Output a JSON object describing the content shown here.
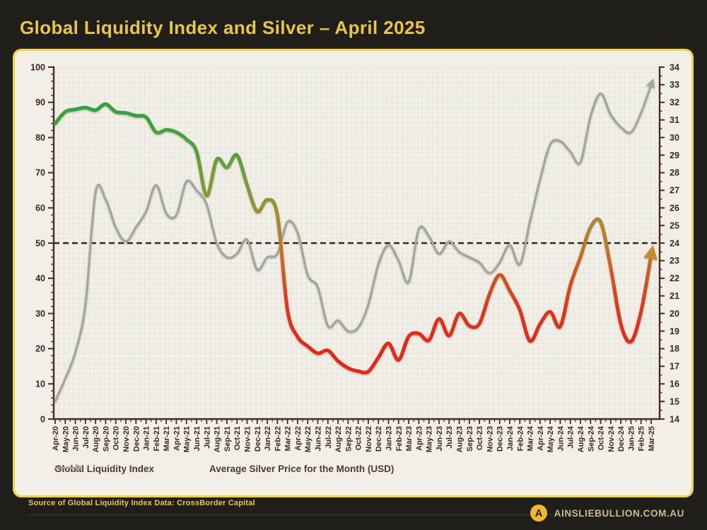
{
  "page": {
    "background": "#201e1b",
    "title": "Global Liquidity Index and Silver – April 2025",
    "title_color": "#eac73e"
  },
  "panel": {
    "background": "#f1efe7",
    "border_color": "#f2d43c"
  },
  "legend": {
    "items": [
      {
        "label": "Global Liquidity Index",
        "color": "#c1802c",
        "icon": "arrow-right"
      },
      {
        "label": "Average Silver Price for the Month (USD)",
        "color": "#a6a49f",
        "icon": "arrow-right"
      }
    ]
  },
  "footer": {
    "source_text": "Source of Global Liquidity Index Data: CrossBorder Capital",
    "source_color": "#eac73e",
    "brand_text": "AINSLIEBULLION.COM.AU",
    "brand_color": "#c8bd91",
    "logo_letter": "A",
    "logo_color": "#f0b92c"
  },
  "chart_data": {
    "type": "line",
    "x_categories": [
      "Apr-20",
      "May-20",
      "Jun-20",
      "Jul-20",
      "Aug-20",
      "Sep-20",
      "Oct-20",
      "Nov-20",
      "Dec-20",
      "Jan-21",
      "Feb-21",
      "Mar-21",
      "Apr-21",
      "May-21",
      "Jun-21",
      "Jul-21",
      "Aug-21",
      "Sep-21",
      "Oct-21",
      "Nov-21",
      "Dec-21",
      "Jan-22",
      "Feb-22",
      "Mar-22",
      "Apr-22",
      "May-22",
      "Jun-22",
      "Jul-22",
      "Aug-22",
      "Sep-22",
      "Oct-22",
      "Nov-22",
      "Dec-22",
      "Jan-23",
      "Feb-23",
      "Mar-23",
      "Apr-23",
      "May-23",
      "Jun-23",
      "Jul-23",
      "Aug-23",
      "Sep-23",
      "Oct-23",
      "Nov-23",
      "Dec-23",
      "Jan-24",
      "Feb-24",
      "Mar-24",
      "Apr-24",
      "May-24",
      "Jun-24",
      "Jul-24",
      "Aug-24",
      "Sep-24",
      "Oct-24",
      "Nov-24",
      "Dec-24",
      "Jan-25",
      "Feb-25",
      "Mar-25"
    ],
    "series": [
      {
        "name": "Global Liquidity Index",
        "axis": "left",
        "color_mode": "value-gradient",
        "line_width": 5,
        "values": [
          84,
          87.3,
          88,
          88.5,
          87.8,
          89.5,
          87.3,
          87,
          86.2,
          85.8,
          81.5,
          82.2,
          81.5,
          79.5,
          76,
          63.5,
          73.8,
          71.5,
          75,
          66.5,
          59,
          62.3,
          58,
          31,
          23.4,
          20.7,
          18.7,
          19.5,
          16.5,
          14.5,
          13.6,
          13.5,
          17.5,
          21.5,
          16.8,
          23.5,
          24.3,
          22.4,
          28.5,
          23.7,
          30,
          26.5,
          27.1,
          35.5,
          41,
          36.5,
          31,
          22.2,
          27,
          30.5,
          26.3,
          38,
          46,
          54.5,
          56,
          43,
          27,
          22,
          30.5,
          46.5
        ]
      },
      {
        "name": "Average Silver Price for the Month (USD)",
        "axis": "right",
        "color": "#a6a49f",
        "line_width": 3.2,
        "values": [
          15.0,
          16.3,
          17.8,
          20.5,
          26.9,
          26.5,
          24.9,
          24.1,
          24.9,
          25.8,
          27.3,
          25.7,
          25.6,
          27.5,
          27.0,
          26.2,
          24.0,
          23.2,
          23.4,
          24.2,
          22.5,
          23.2,
          23.4,
          25.2,
          24.6,
          22.2,
          21.5,
          19.3,
          19.6,
          19.0,
          19.2,
          20.5,
          22.8,
          23.9,
          23.0,
          21.8,
          24.8,
          24.4,
          23.4,
          24.1,
          23.5,
          23.2,
          22.9,
          22.3,
          22.9,
          23.9,
          22.8,
          25.2,
          27.6,
          29.6,
          29.8,
          29.2,
          28.6,
          31.2,
          32.5,
          31.3,
          30.6,
          30.3,
          31.4,
          33.0
        ]
      }
    ],
    "axes": {
      "left": {
        "min": 0,
        "max": 100,
        "tick_step": 10,
        "minor_step": 2,
        "labels": [
          "0",
          "10",
          "20",
          "30",
          "40",
          "50",
          "60",
          "70",
          "80",
          "90",
          "100"
        ]
      },
      "right": {
        "min": 14,
        "max": 34,
        "tick_step": 1,
        "minor_step": 0.5,
        "labels": [
          "14",
          "15",
          "16",
          "17",
          "18",
          "19",
          "20",
          "21",
          "22",
          "23",
          "24",
          "25",
          "26",
          "27",
          "28",
          "29",
          "30",
          "31",
          "32",
          "33",
          "34"
        ]
      }
    },
    "reference_line": {
      "left_value": 50,
      "right_value": 24,
      "style": "dashed",
      "color": "#2f2925"
    },
    "grid": true,
    "grid_color": "#d8dbd0",
    "axis_color": "#4d2a20",
    "tick_label_color": "#40251c",
    "arrow_colors": {
      "liquidity": "#c88a2e",
      "silver": "#a6a49f"
    },
    "gradient_stops": [
      {
        "offset": "0",
        "color": "#2aa33c"
      },
      {
        "offset": "0.12",
        "color": "#2fa43a"
      },
      {
        "offset": "0.22",
        "color": "#49a337"
      },
      {
        "offset": "0.32",
        "color": "#7b9c32"
      },
      {
        "offset": "0.40",
        "color": "#9a912d"
      },
      {
        "offset": "0.48",
        "color": "#bb7e28"
      },
      {
        "offset": "0.54",
        "color": "#c96a23"
      },
      {
        "offset": "0.60",
        "color": "#d4531e"
      },
      {
        "offset": "0.68",
        "color": "#e13619"
      },
      {
        "offset": "0.78",
        "color": "#e72716"
      },
      {
        "offset": "1",
        "color": "#e72716"
      }
    ]
  }
}
